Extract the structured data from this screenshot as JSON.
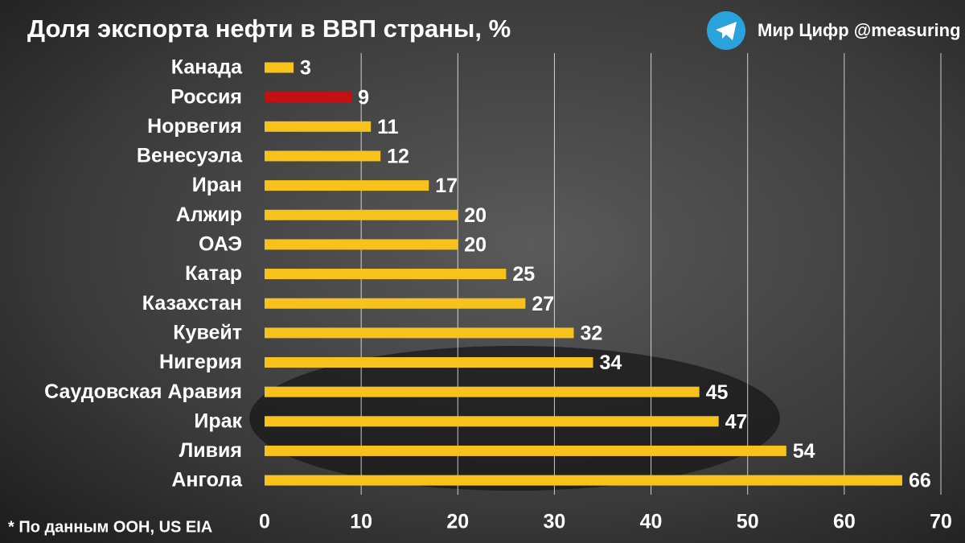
{
  "chart_data": {
    "type": "barh",
    "title": "Доля экспорта нефти в ВВП страны, %",
    "source": "Мир Цифр @measuring",
    "footnote": "* По данным ООН, US EIA",
    "categories": [
      "Канада",
      "Россия",
      "Норвегия",
      "Венесуэла",
      "Иран",
      "Алжир",
      "ОАЭ",
      "Катар",
      "Казахстан",
      "Кувейт",
      "Нигерия",
      "Саудовская Аравия",
      "Ирак",
      "Ливия",
      "Ангола"
    ],
    "values": [
      3,
      9,
      11,
      12,
      17,
      20,
      20,
      25,
      27,
      32,
      34,
      45,
      47,
      54,
      66
    ],
    "colors": [
      "#f8c21c",
      "#c41010",
      "#f8c21c",
      "#f8c21c",
      "#f8c21c",
      "#f8c21c",
      "#f8c21c",
      "#f8c21c",
      "#f8c21c",
      "#f8c21c",
      "#f8c21c",
      "#f8c21c",
      "#f8c21c",
      "#f8c21c",
      "#f8c21c"
    ],
    "xlim": [
      0,
      70
    ],
    "xticks": [
      0,
      10,
      20,
      30,
      40,
      50,
      60,
      70
    ],
    "grid": true
  }
}
